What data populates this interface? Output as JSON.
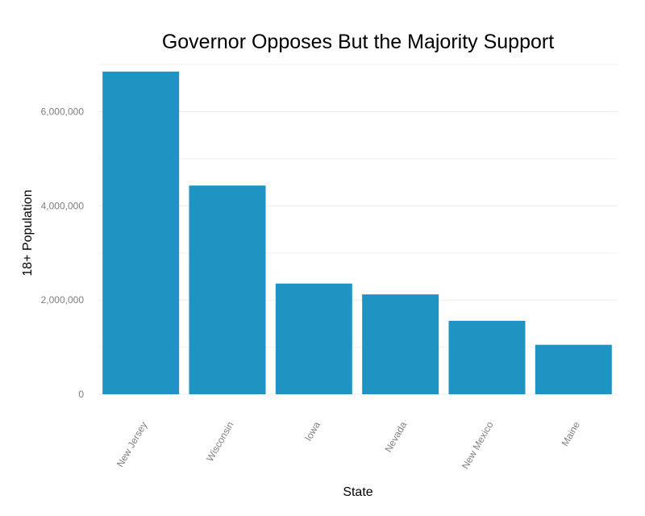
{
  "chart_data": {
    "type": "bar",
    "title": "Governor Opposes But the Majority Support",
    "xlabel": "State",
    "ylabel": "18+ Population",
    "categories": [
      "New Jersey",
      "Wisconsin",
      "Iowa",
      "Nevada",
      "New Mexico",
      "Maine"
    ],
    "values": [
      6850000,
      4430000,
      2350000,
      2120000,
      1560000,
      1050000
    ],
    "ylim": [
      0,
      7000000
    ],
    "yticks": [
      0,
      2000000,
      4000000,
      6000000
    ],
    "ytick_labels": [
      "0",
      "2,000,000",
      "4,000,000",
      "6,000,000"
    ],
    "grid": true,
    "legend": "none",
    "bar_color": "#1f93c1"
  }
}
